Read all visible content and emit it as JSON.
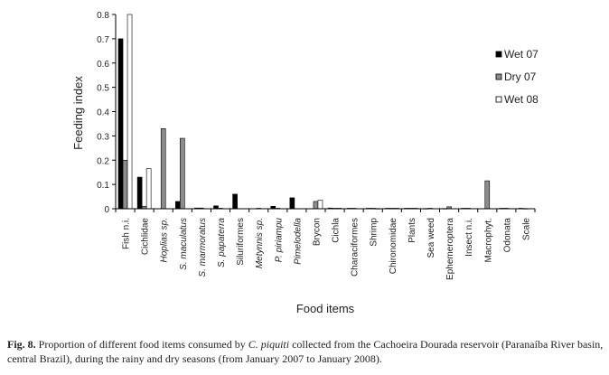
{
  "chart_data": {
    "type": "bar",
    "xlabel": "Food items",
    "ylabel": "Feeding index",
    "ylim": [
      0,
      0.8
    ],
    "yticks": [
      "0",
      "0.1",
      "0.2",
      "0.3",
      "0.4",
      "0.5",
      "0.6",
      "0.7",
      "0.8"
    ],
    "legend_position": "right",
    "categories": [
      "Fish n.i.",
      "Cichlidae",
      "Hoplias sp.",
      "S. maculatus",
      "S. marmoratus",
      "S. papaterra",
      "Siluriformes",
      "Metynnis sp.",
      "P. piriampu",
      "Pimelodella",
      "Brycon",
      "Cichla",
      "Characiformes",
      "Shrimp",
      "Chironomidae",
      "Plants",
      "Sea weed",
      "Ephemeroptera",
      "Insect n.i.",
      "Macrophyt.",
      "Odonata",
      "Scale"
    ],
    "italic_categories": [
      false,
      false,
      true,
      true,
      true,
      true,
      false,
      true,
      true,
      true,
      false,
      false,
      false,
      false,
      false,
      false,
      false,
      false,
      false,
      false,
      false,
      false
    ],
    "series": [
      {
        "name": "Wet 07",
        "color": "#000000",
        "values": [
          0.7,
          0.13,
          0,
          0.03,
          0.003,
          0.012,
          0.06,
          0,
          0.01,
          0.045,
          0,
          0.003,
          0.002,
          0.002,
          0.002,
          0.002,
          0.001,
          0.001,
          0.002,
          0,
          0.002,
          0.002
        ]
      },
      {
        "name": "Dry 07",
        "color": "#8c8c8c",
        "values": [
          0.2,
          0.01,
          0.33,
          0.29,
          0.003,
          0.002,
          0,
          0.002,
          0.002,
          0,
          0.03,
          0.002,
          0.002,
          0.002,
          0.002,
          0.002,
          0.002,
          0.008,
          0.002,
          0.115,
          0.002,
          0.001
        ]
      },
      {
        "name": "Wet 08",
        "color": "#ffffff",
        "values": [
          0.8,
          0.165,
          0,
          0,
          0,
          0,
          0,
          0,
          0,
          0,
          0.035,
          0.002,
          0,
          0.001,
          0.002,
          0.002,
          0,
          0,
          0,
          0,
          0,
          0
        ]
      }
    ]
  },
  "caption": {
    "label": "Fig. 8.",
    "text_before": " Proportion of different food items consumed by ",
    "species": "C. piquiti",
    "text_after": " collected from the Cachoeira Dourada reservoir (Paranaíba River basin, central Brazil), during the rainy and dry seasons (from January 2007 to January 2008)."
  }
}
